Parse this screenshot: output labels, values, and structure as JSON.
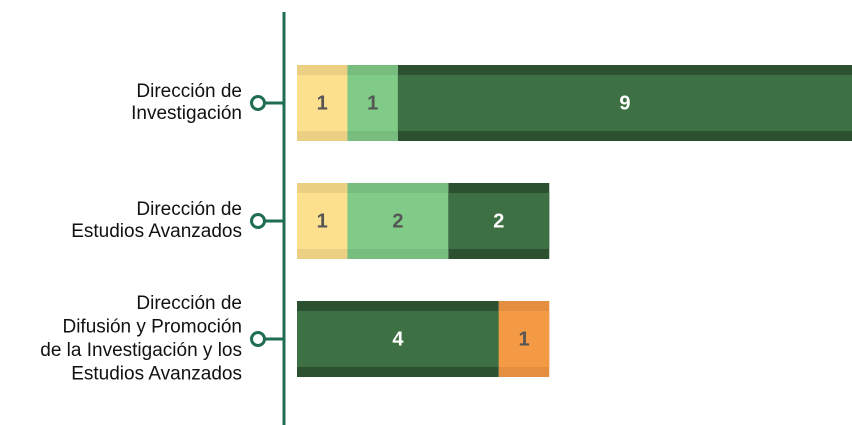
{
  "chart_data": {
    "type": "stacked-bar-horizontal",
    "categories": [
      [
        "Dirección de",
        "Investigación"
      ],
      [
        "Dirección de",
        "Estudios Avanzados"
      ],
      [
        "Dirección de",
        "Difusión y Promoción",
        "de la Investigación y los",
        "Estudios Avanzados"
      ]
    ],
    "series": [
      {
        "color": "#fde08e",
        "values": [
          1,
          1,
          null
        ]
      },
      {
        "color": "#80cb87",
        "values": [
          1,
          2,
          null
        ]
      },
      {
        "color": "#3d7042",
        "values": [
          9,
          2,
          4
        ]
      },
      {
        "color": "#f59a44",
        "values": [
          null,
          null,
          1
        ]
      }
    ],
    "xlim": [
      0,
      11
    ]
  }
}
